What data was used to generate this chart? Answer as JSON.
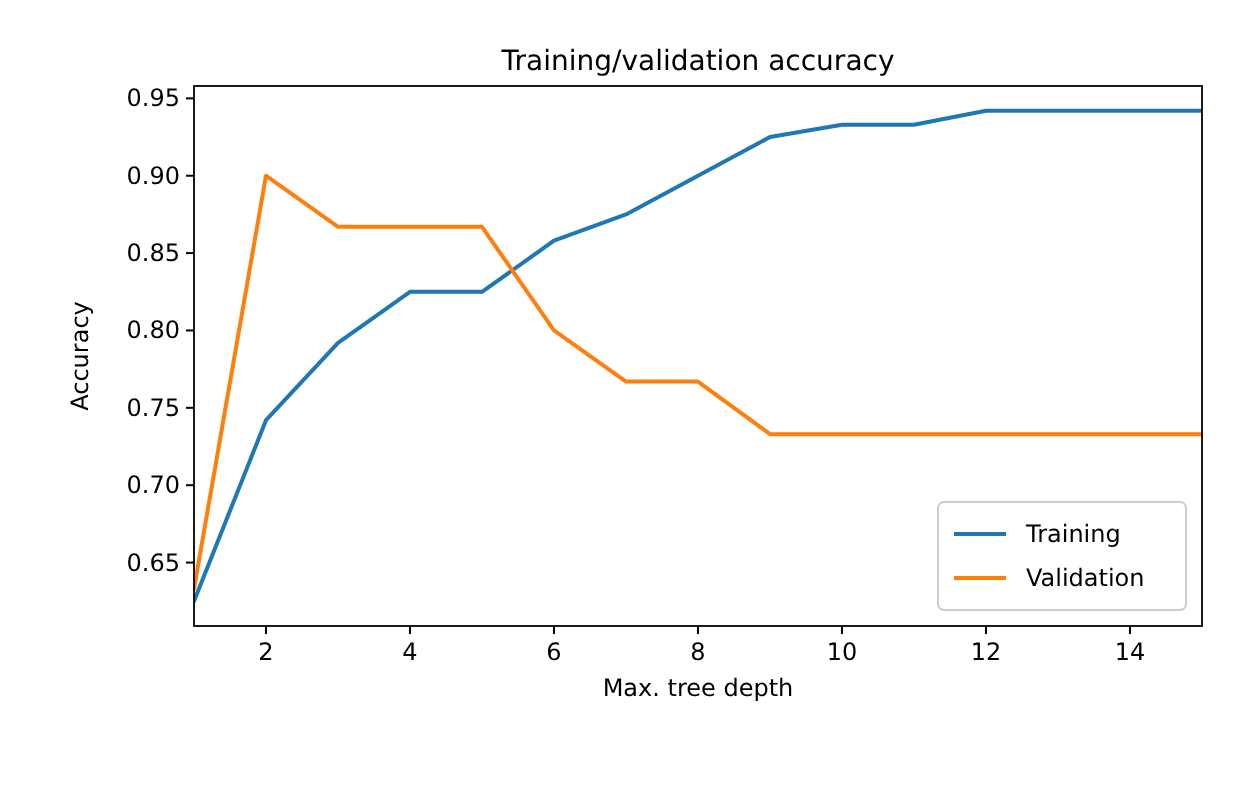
{
  "chart_data": {
    "type": "line",
    "title": "Training/validation accuracy",
    "xlabel": "Max. tree depth",
    "ylabel": "Accuracy",
    "x": [
      1,
      2,
      3,
      4,
      5,
      6,
      7,
      8,
      9,
      10,
      11,
      12,
      13,
      14,
      15
    ],
    "series": [
      {
        "name": "Training",
        "color": "#1f77b4",
        "values": [
          0.625,
          0.742,
          0.792,
          0.825,
          0.825,
          0.858,
          0.875,
          0.9,
          0.925,
          0.933,
          0.933,
          0.942,
          0.942,
          0.942,
          0.942
        ]
      },
      {
        "name": "Validation",
        "color": "#ff7f0e",
        "values": [
          0.633,
          0.9,
          0.867,
          0.867,
          0.867,
          0.8,
          0.767,
          0.767,
          0.733,
          0.733,
          0.733,
          0.733,
          0.733,
          0.733,
          0.733
        ]
      }
    ],
    "xlim": [
      1,
      15
    ],
    "xticks": [
      2,
      4,
      6,
      8,
      10,
      12,
      14
    ],
    "ylim": [
      0.609,
      0.958
    ],
    "yticks": [
      {
        "value": 0.65,
        "label": "0.65"
      },
      {
        "value": 0.7,
        "label": "0.70"
      },
      {
        "value": 0.75,
        "label": "0.75"
      },
      {
        "value": 0.8,
        "label": "0.80"
      },
      {
        "value": 0.85,
        "label": "0.85"
      },
      {
        "value": 0.9,
        "label": "0.90"
      },
      {
        "value": 0.95,
        "label": "0.95"
      }
    ],
    "grid": false,
    "legend": "bottom right",
    "marker": "none",
    "line_style": "solid"
  }
}
